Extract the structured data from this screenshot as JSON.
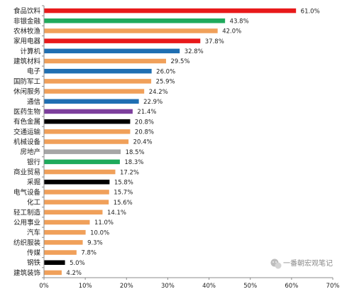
{
  "chart_data": {
    "type": "bar",
    "orientation": "horizontal",
    "categories": [
      "食品饮料",
      "非银金融",
      "农林牧渔",
      "家用电器",
      "计算机",
      "建筑材料",
      "电子",
      "国防军工",
      "休闲服务",
      "通信",
      "医药生物",
      "有色金属",
      "交通运输",
      "机械设备",
      "房地产",
      "银行",
      "商业贸易",
      "采掘",
      "电气设备",
      "化工",
      "轻工制造",
      "公用事业",
      "汽车",
      "纺织服装",
      "传媒",
      "钢铁",
      "建筑装饰"
    ],
    "values": [
      61.0,
      43.8,
      42.0,
      37.8,
      32.8,
      29.5,
      26.0,
      25.9,
      24.2,
      22.9,
      21.4,
      20.8,
      20.8,
      20.4,
      18.5,
      18.3,
      17.2,
      15.8,
      15.7,
      15.6,
      14.1,
      11.0,
      10.0,
      9.3,
      7.8,
      5.0,
      4.2
    ],
    "value_labels": [
      "61.0%",
      "43.8%",
      "42.0%",
      "37.8%",
      "32.8%",
      "29.5%",
      "26.0%",
      "25.9%",
      "24.2%",
      "22.9%",
      "21.4%",
      "20.8%",
      "20.8%",
      "20.4%",
      "18.5%",
      "18.3%",
      "17.2%",
      "15.8%",
      "15.7%",
      "15.6%",
      "14.1%",
      "11.0%",
      "10.0%",
      "9.3%",
      "7.8%",
      "5.0%",
      "4.2%"
    ],
    "bar_colors": [
      "#e8191a",
      "#1faa5c",
      "#f0a05a",
      "#e8191a",
      "#1f6fb2",
      "#f0a05a",
      "#1f6fb2",
      "#f0a05a",
      "#f0a05a",
      "#1f6fb2",
      "#7d3f9d",
      "#000000",
      "#f0a05a",
      "#f0a05a",
      "#a6a6a6",
      "#1faa5c",
      "#f0a05a",
      "#000000",
      "#f0a05a",
      "#f0a05a",
      "#f0a05a",
      "#f0a05a",
      "#f0a05a",
      "#f0a05a",
      "#f0a05a",
      "#000000",
      "#f0a05a"
    ],
    "x_ticks": [
      "0%",
      "10%",
      "20%",
      "30%",
      "40%",
      "50%",
      "60%",
      "70%"
    ],
    "xlim": [
      0,
      70
    ],
    "grid": false,
    "legend": "none",
    "title": "",
    "xlabel": "",
    "ylabel": ""
  },
  "watermark": {
    "text": "一番朝宏观笔记",
    "icon": "wechat-icon"
  }
}
